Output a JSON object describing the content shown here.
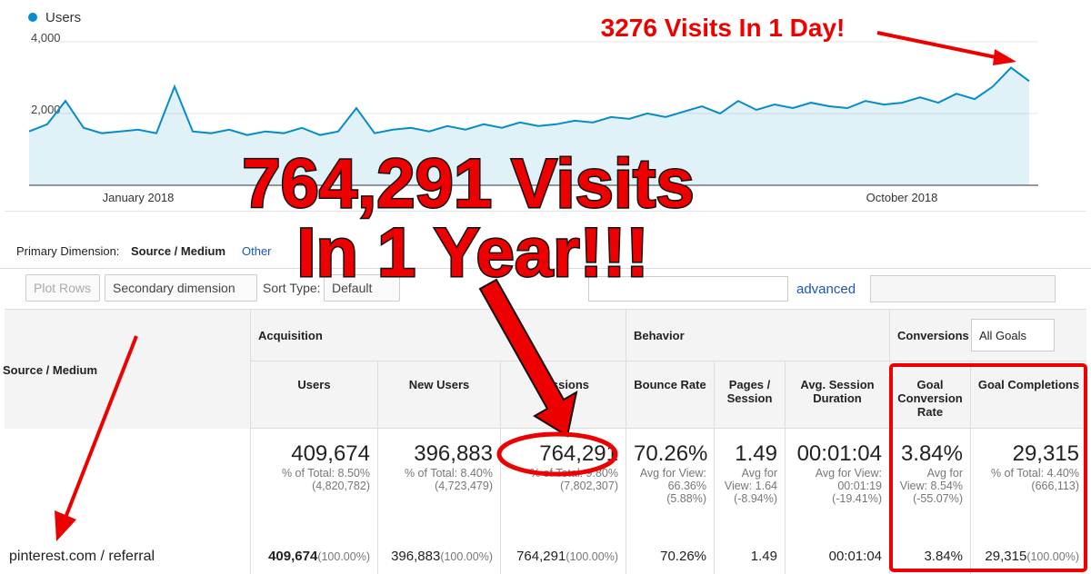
{
  "chart_data": {
    "type": "line",
    "categories": [
      null,
      null,
      null,
      null,
      null,
      null,
      "January 2018",
      null,
      null,
      null,
      null,
      null,
      null,
      null,
      null,
      null,
      null,
      null,
      null,
      null,
      null,
      null,
      null,
      null,
      null,
      null,
      null,
      null,
      null,
      null,
      null,
      null,
      null,
      null,
      null,
      null,
      null,
      null,
      null,
      null,
      null,
      null,
      null,
      null,
      null,
      null,
      null,
      null,
      "October 2018",
      null,
      null,
      null,
      null,
      null,
      null,
      null
    ],
    "series": [
      {
        "name": "Users",
        "color": "#058dc7",
        "values": [
          1500,
          1700,
          2350,
          1600,
          1450,
          1500,
          1550,
          1450,
          2750,
          1500,
          1450,
          1550,
          1400,
          1500,
          1450,
          1600,
          1400,
          1500,
          2150,
          1450,
          1550,
          1600,
          1500,
          1650,
          1550,
          1700,
          1600,
          1750,
          1650,
          1700,
          1800,
          1750,
          1900,
          1850,
          2000,
          1900,
          2050,
          2200,
          2000,
          2350,
          2100,
          2250,
          2150,
          2300,
          2200,
          2150,
          2350,
          2250,
          2300,
          2450,
          2300,
          2550,
          2400,
          2750,
          3276,
          2900
        ]
      }
    ],
    "ylim": [
      0,
      4250
    ],
    "yticks": [
      {
        "value": 4000,
        "label": "4,000"
      },
      {
        "value": 2000,
        "label": "2,000"
      }
    ],
    "grid": true
  },
  "annotations": {
    "peak": "3276 Visits In 1 Day!",
    "headline_1": "764,291 Visits",
    "headline_2": "In 1 Year!!!"
  },
  "toolbar": {
    "primary_dimension_label": "Primary Dimension:",
    "primary_dimension": "Source / Medium",
    "other": "Other",
    "plot_rows": "Plot Rows",
    "secondary": "Secondary dimension",
    "sort_type": "Sort Type:",
    "sort_default": "Default",
    "advanced": "advanced"
  },
  "table": {
    "groups": [
      "Acquisition",
      "Behavior",
      "Conversions"
    ],
    "goals_select": "All Goals",
    "dimension_header": "Source / Medium",
    "columns": [
      "Users",
      "New Users",
      "Sessions",
      "Bounce Rate",
      "Pages / Session",
      "Avg. Session Duration",
      "Goal Conversion Rate",
      "Goal Completions"
    ],
    "totals": [
      {
        "main": "409,674",
        "sub": [
          "% of Total: 8.50%",
          "(4,820,782)"
        ]
      },
      {
        "main": "396,883",
        "sub": [
          "% of Total: 8.40%",
          "(4,723,479)"
        ]
      },
      {
        "main": "764,291",
        "sub": [
          "% of Total: 9.80%",
          "(7,802,307)"
        ]
      },
      {
        "main": "70.26%",
        "sub": [
          "Avg for View: 66.36%",
          "(5.88%)"
        ]
      },
      {
        "main": "1.49",
        "sub": [
          "Avg for View: 1.64",
          "(-8.94%)"
        ]
      },
      {
        "main": "00:01:04",
        "sub": [
          "Avg for View: 00:01:19",
          "(-19.41%)"
        ]
      },
      {
        "main": "3.84%",
        "sub": [
          "Avg for View: 8.54%",
          "(-55.07%)"
        ]
      },
      {
        "main": "29,315",
        "sub": [
          "% of Total: 4.40%",
          "(666,113)"
        ]
      }
    ],
    "rows": [
      {
        "label": "pinterest.com / referral",
        "cells": [
          {
            "value": "409,674",
            "pct": "(100.00%)"
          },
          {
            "value": "396,883",
            "pct": "(100.00%)"
          },
          {
            "value": "764,291",
            "pct": "(100.00%)"
          },
          {
            "value": "70.26%"
          },
          {
            "value": "1.49"
          },
          {
            "value": "00:01:04"
          },
          {
            "value": "3.84%"
          },
          {
            "value": "29,315",
            "pct": "(100.00%)"
          }
        ]
      }
    ]
  }
}
